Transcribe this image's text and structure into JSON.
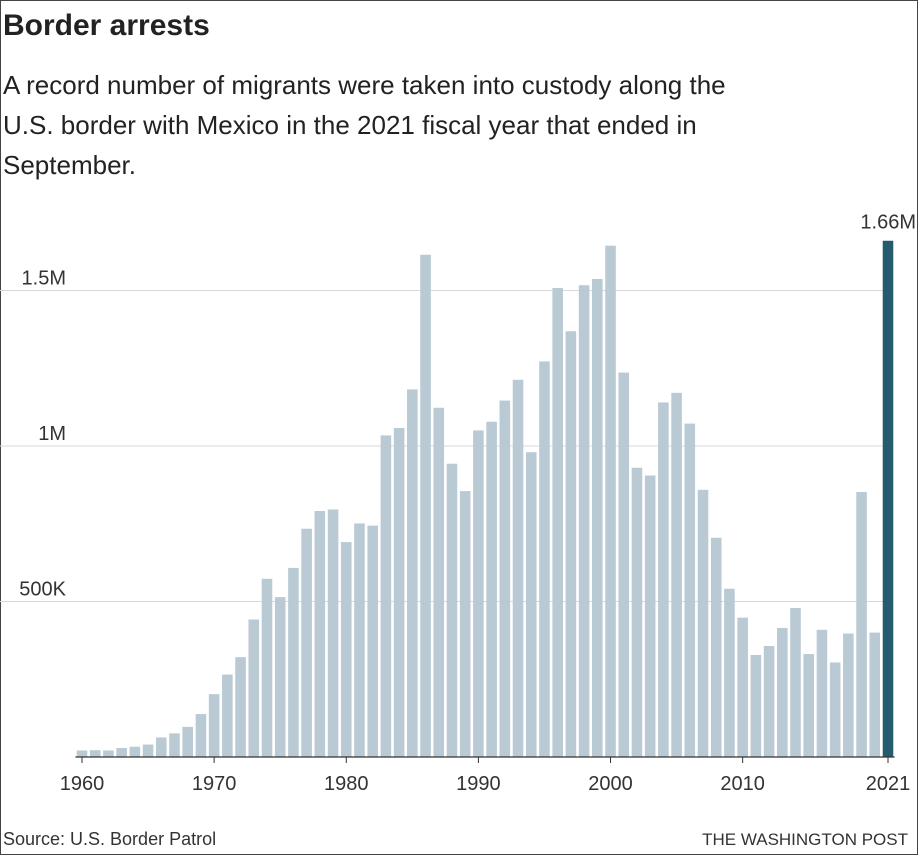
{
  "chart_data": {
    "type": "bar",
    "title": "Border arrests",
    "subtitle": [
      "A record number of migrants were taken into custody along the",
      "U.S. border with Mexico in the 2021 fiscal year that ended in",
      "September."
    ],
    "source": "Source: U.S. Border Patrol",
    "credit": "THE WASHINGTON POST",
    "x": [
      1960,
      1961,
      1962,
      1963,
      1964,
      1965,
      1966,
      1967,
      1968,
      1969,
      1970,
      1971,
      1972,
      1973,
      1974,
      1975,
      1976,
      1977,
      1978,
      1979,
      1980,
      1981,
      1982,
      1983,
      1984,
      1985,
      1986,
      1987,
      1988,
      1989,
      1990,
      1991,
      1992,
      1993,
      1994,
      1995,
      1996,
      1997,
      1998,
      1999,
      2000,
      2001,
      2002,
      2003,
      2004,
      2005,
      2006,
      2007,
      2008,
      2009,
      2010,
      2011,
      2012,
      2013,
      2014,
      2015,
      2016,
      2017,
      2018,
      2019,
      2020,
      2021
    ],
    "values": [
      21000,
      22000,
      21000,
      29000,
      33000,
      40000,
      63000,
      76000,
      97000,
      138000,
      202000,
      265000,
      321000,
      442000,
      573000,
      514000,
      608000,
      734000,
      791000,
      796000,
      691000,
      751000,
      744000,
      1034000,
      1058000,
      1182000,
      1615000,
      1123000,
      943000,
      855000,
      1050000,
      1078000,
      1146000,
      1213000,
      980000,
      1272000,
      1508000,
      1369000,
      1517000,
      1537000,
      1644000,
      1236000,
      930000,
      905000,
      1140000,
      1171000,
      1072000,
      859000,
      705000,
      541000,
      448000,
      328000,
      357000,
      415000,
      479000,
      331000,
      409000,
      304000,
      397000,
      852000,
      400000,
      1660000
    ],
    "value_labels": [
      null,
      null,
      null,
      null,
      null,
      null,
      null,
      null,
      null,
      null,
      null,
      null,
      null,
      null,
      null,
      null,
      null,
      null,
      null,
      null,
      null,
      null,
      null,
      null,
      null,
      null,
      null,
      null,
      null,
      null,
      null,
      null,
      null,
      null,
      null,
      null,
      null,
      null,
      null,
      null,
      null,
      null,
      null,
      null,
      null,
      null,
      null,
      null,
      null,
      null,
      null,
      null,
      null,
      null,
      null,
      null,
      null,
      null,
      null,
      null,
      null,
      "1.66M"
    ],
    "colors": [
      "#b9cad4",
      "#b9cad4",
      "#b9cad4",
      "#b9cad4",
      "#b9cad4",
      "#b9cad4",
      "#b9cad4",
      "#b9cad4",
      "#b9cad4",
      "#b9cad4",
      "#b9cad4",
      "#b9cad4",
      "#b9cad4",
      "#b9cad4",
      "#b9cad4",
      "#b9cad4",
      "#b9cad4",
      "#b9cad4",
      "#b9cad4",
      "#b9cad4",
      "#b9cad4",
      "#b9cad4",
      "#b9cad4",
      "#b9cad4",
      "#b9cad4",
      "#b9cad4",
      "#b9cad4",
      "#b9cad4",
      "#b9cad4",
      "#b9cad4",
      "#b9cad4",
      "#b9cad4",
      "#b9cad4",
      "#b9cad4",
      "#b9cad4",
      "#b9cad4",
      "#b9cad4",
      "#b9cad4",
      "#b9cad4",
      "#b9cad4",
      "#b9cad4",
      "#b9cad4",
      "#b9cad4",
      "#b9cad4",
      "#b9cad4",
      "#b9cad4",
      "#b9cad4",
      "#b9cad4",
      "#b9cad4",
      "#b9cad4",
      "#b9cad4",
      "#b9cad4",
      "#b9cad4",
      "#b9cad4",
      "#b9cad4",
      "#b9cad4",
      "#b9cad4",
      "#b9cad4",
      "#b9cad4",
      "#b9cad4",
      "#b9cad4",
      "#245c6e"
    ],
    "xlim": [
      1959.5,
      2021.5
    ],
    "xticks": [
      1960,
      1970,
      1980,
      1990,
      2000,
      2010,
      2021
    ],
    "ylim": [
      0,
      1700000
    ],
    "yticks": [
      {
        "value": 500000,
        "label": "500K"
      },
      {
        "value": 1000000,
        "label": "1M"
      },
      {
        "value": 1500000,
        "label": "1.5M"
      }
    ],
    "grid": true
  }
}
